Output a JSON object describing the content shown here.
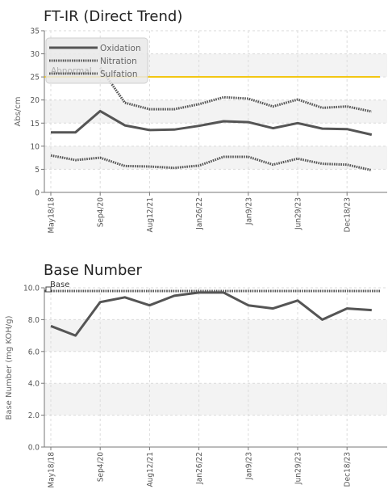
{
  "chart_data": [
    {
      "type": "line",
      "title": "FT-IR (Direct Trend)",
      "ylabel": "Abs/cm",
      "ylim": [
        0,
        35
      ],
      "yticks": [
        "0",
        "5",
        "10",
        "15",
        "20",
        "25",
        "30",
        "35"
      ],
      "x_tick_labels": [
        "May18/18",
        "Sep4/20",
        "Aug12/21",
        "Jan26/22",
        "Jan9/23",
        "Jun29/23",
        "Dec18/23"
      ],
      "grid": true,
      "legend_position": "top-left",
      "series": [
        {
          "name": "Oxidation",
          "style": "solid",
          "color": "#555555",
          "values": [
            13.0,
            13.0,
            17.6,
            14.5,
            13.5,
            13.6,
            14.4,
            15.4,
            15.2,
            13.9,
            15.0,
            13.8,
            13.7,
            12.5
          ]
        },
        {
          "name": "Nitration",
          "style": "dotted",
          "color": "#555555",
          "values": [
            8.0,
            7.0,
            7.5,
            5.7,
            5.6,
            5.3,
            5.8,
            7.7,
            7.7,
            6.0,
            7.3,
            6.2,
            6.0,
            4.8
          ]
        },
        {
          "name": "Sulfation",
          "style": "dotted",
          "color": "#555555",
          "values": [
            null,
            null,
            27.0,
            19.4,
            18.0,
            18.0,
            19.1,
            20.6,
            20.3,
            18.6,
            20.1,
            18.3,
            18.6,
            17.5
          ]
        }
      ],
      "reference_lines": [
        {
          "label": "Abnormal",
          "value": 25,
          "color": "#f2c200"
        }
      ]
    },
    {
      "type": "line",
      "title": "Base Number",
      "ylabel": "Base Number (mg KOH/g)",
      "ylim": [
        0,
        10
      ],
      "yticks": [
        "0.0",
        "2.0",
        "4.0",
        "6.0",
        "8.0",
        "10.0"
      ],
      "x_tick_labels": [
        "May18/18",
        "Sep4/20",
        "Aug12/21",
        "Jan26/22",
        "Jan9/23",
        "Jun29/23",
        "Dec18/23"
      ],
      "grid": true,
      "series": [
        {
          "name": "Base Number",
          "style": "solid",
          "color": "#555555",
          "values": [
            7.6,
            7.0,
            9.1,
            9.4,
            8.9,
            9.5,
            9.7,
            9.7,
            8.9,
            8.7,
            9.2,
            8.0,
            8.7,
            8.6
          ]
        }
      ],
      "reference_lines": [
        {
          "label": "Base",
          "value": 9.8,
          "style": "dotted",
          "color": "#555555"
        }
      ]
    }
  ]
}
